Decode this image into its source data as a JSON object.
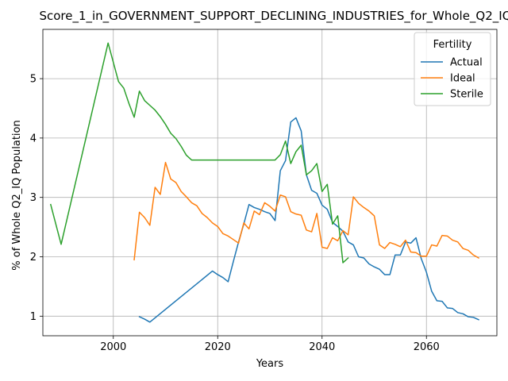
{
  "chart_data": {
    "type": "line",
    "title": "Score_1_in_GOVERNMENT_SUPPORT_DECLINING_INDUSTRIES_for_Whole_Q2_IQ",
    "xlabel": "Years",
    "ylabel": "% of Whole Q2_IQ Population",
    "xlim": [
      1986.5,
      2073.5
    ],
    "ylim": [
      0.67,
      5.83
    ],
    "xticks": [
      2000,
      2020,
      2040,
      2060
    ],
    "yticks": [
      1,
      2,
      3,
      4,
      5
    ],
    "grid": true,
    "legend": {
      "title": "Fertility",
      "placement": "top-right"
    },
    "series": [
      {
        "name": "Actual",
        "color": "#1f77b4",
        "points": [
          [
            2005,
            0.99
          ],
          [
            2006,
            0.95
          ],
          [
            2007,
            0.9
          ],
          [
            2019,
            1.76
          ],
          [
            2020,
            1.7
          ],
          [
            2021,
            1.65
          ],
          [
            2022,
            1.58
          ],
          [
            2023,
            1.92
          ],
          [
            2024,
            2.25
          ],
          [
            2025,
            2.55
          ],
          [
            2026,
            2.88
          ],
          [
            2027,
            2.83
          ],
          [
            2028,
            2.8
          ],
          [
            2029,
            2.76
          ],
          [
            2030,
            2.73
          ],
          [
            2031,
            2.61
          ],
          [
            2032,
            3.45
          ],
          [
            2033,
            3.62
          ],
          [
            2034,
            4.27
          ],
          [
            2035,
            4.34
          ],
          [
            2036,
            4.12
          ],
          [
            2037,
            3.38
          ],
          [
            2038,
            3.12
          ],
          [
            2039,
            3.07
          ],
          [
            2040,
            2.87
          ],
          [
            2041,
            2.8
          ],
          [
            2042,
            2.58
          ],
          [
            2043,
            2.51
          ],
          [
            2044,
            2.43
          ],
          [
            2045,
            2.25
          ],
          [
            2046,
            2.2
          ],
          [
            2047,
            2.0
          ],
          [
            2048,
            1.98
          ],
          [
            2049,
            1.88
          ],
          [
            2050,
            1.83
          ],
          [
            2051,
            1.79
          ],
          [
            2052,
            1.7
          ],
          [
            2053,
            1.7
          ],
          [
            2054,
            2.03
          ],
          [
            2055,
            2.03
          ],
          [
            2056,
            2.25
          ],
          [
            2057,
            2.23
          ],
          [
            2058,
            2.32
          ],
          [
            2059,
            1.97
          ],
          [
            2060,
            1.74
          ],
          [
            2061,
            1.42
          ],
          [
            2062,
            1.26
          ],
          [
            2063,
            1.25
          ],
          [
            2064,
            1.14
          ],
          [
            2065,
            1.13
          ],
          [
            2066,
            1.06
          ],
          [
            2067,
            1.04
          ],
          [
            2068,
            0.99
          ],
          [
            2069,
            0.98
          ],
          [
            2070,
            0.94
          ]
        ]
      },
      {
        "name": "Ideal",
        "color": "#ff7f0e",
        "points": [
          [
            2004,
            1.95
          ],
          [
            2005,
            2.75
          ],
          [
            2006,
            2.66
          ],
          [
            2007,
            2.53
          ],
          [
            2008,
            3.17
          ],
          [
            2009,
            3.05
          ],
          [
            2010,
            3.59
          ],
          [
            2011,
            3.31
          ],
          [
            2012,
            3.25
          ],
          [
            2013,
            3.1
          ],
          [
            2014,
            3.01
          ],
          [
            2015,
            2.91
          ],
          [
            2016,
            2.86
          ],
          [
            2017,
            2.73
          ],
          [
            2018,
            2.66
          ],
          [
            2019,
            2.57
          ],
          [
            2020,
            2.51
          ],
          [
            2021,
            2.39
          ],
          [
            2022,
            2.35
          ],
          [
            2023,
            2.29
          ],
          [
            2024,
            2.23
          ],
          [
            2025,
            2.57
          ],
          [
            2026,
            2.47
          ],
          [
            2027,
            2.77
          ],
          [
            2028,
            2.71
          ],
          [
            2029,
            2.91
          ],
          [
            2030,
            2.85
          ],
          [
            2031,
            2.77
          ],
          [
            2032,
            3.04
          ],
          [
            2033,
            3.01
          ],
          [
            2034,
            2.76
          ],
          [
            2035,
            2.72
          ],
          [
            2036,
            2.7
          ],
          [
            2037,
            2.45
          ],
          [
            2038,
            2.42
          ],
          [
            2039,
            2.73
          ],
          [
            2040,
            2.16
          ],
          [
            2041,
            2.14
          ],
          [
            2042,
            2.32
          ],
          [
            2043,
            2.27
          ],
          [
            2044,
            2.44
          ],
          [
            2045,
            2.37
          ],
          [
            2046,
            3.01
          ],
          [
            2047,
            2.9
          ],
          [
            2048,
            2.83
          ],
          [
            2049,
            2.77
          ],
          [
            2050,
            2.69
          ],
          [
            2051,
            2.2
          ],
          [
            2052,
            2.14
          ],
          [
            2053,
            2.24
          ],
          [
            2054,
            2.21
          ],
          [
            2055,
            2.17
          ],
          [
            2056,
            2.28
          ],
          [
            2057,
            2.08
          ],
          [
            2058,
            2.07
          ],
          [
            2059,
            2.01
          ],
          [
            2060,
            2.01
          ],
          [
            2061,
            2.2
          ],
          [
            2062,
            2.18
          ],
          [
            2063,
            2.36
          ],
          [
            2064,
            2.35
          ],
          [
            2065,
            2.28
          ],
          [
            2066,
            2.25
          ],
          [
            2067,
            2.14
          ],
          [
            2068,
            2.11
          ],
          [
            2069,
            2.03
          ],
          [
            2070,
            1.98
          ]
        ]
      },
      {
        "name": "Sterile",
        "color": "#2ca02c",
        "points": [
          [
            1988,
            2.88
          ],
          [
            1990,
            2.21
          ],
          [
            1999,
            5.6
          ],
          [
            2001,
            4.95
          ],
          [
            2002,
            4.84
          ],
          [
            2003,
            4.58
          ],
          [
            2004,
            4.35
          ],
          [
            2005,
            4.79
          ],
          [
            2006,
            4.63
          ],
          [
            2007,
            4.55
          ],
          [
            2008,
            4.47
          ],
          [
            2009,
            4.36
          ],
          [
            2010,
            4.23
          ],
          [
            2011,
            4.08
          ],
          [
            2012,
            3.99
          ],
          [
            2013,
            3.86
          ],
          [
            2014,
            3.71
          ],
          [
            2015,
            3.63
          ],
          [
            2031,
            3.63
          ],
          [
            2032,
            3.72
          ],
          [
            2033,
            3.95
          ],
          [
            2034,
            3.57
          ],
          [
            2035,
            3.77
          ],
          [
            2036,
            3.88
          ],
          [
            2037,
            3.38
          ],
          [
            2038,
            3.45
          ],
          [
            2039,
            3.57
          ],
          [
            2040,
            3.1
          ],
          [
            2041,
            3.22
          ],
          [
            2042,
            2.55
          ],
          [
            2043,
            2.69
          ],
          [
            2044,
            1.9
          ],
          [
            2045,
            1.98
          ]
        ]
      }
    ]
  }
}
